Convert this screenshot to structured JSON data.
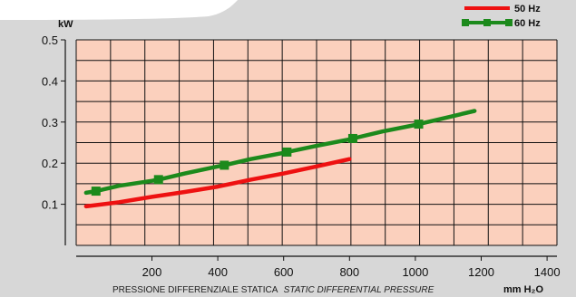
{
  "chart_data": {
    "type": "line",
    "ylabel_unit": "kW",
    "xlabel_it": "PRESSIONE DIFFERENZIALE STATICA",
    "xlabel_en": "STATIC DIFFERENTIAL PRESSURE",
    "xlabel_unit": "mm H₂O",
    "xlim": [
      -30,
      1430
    ],
    "ylim": [
      0,
      0.5
    ],
    "x_ticks": [
      200,
      400,
      600,
      800,
      1000,
      1200,
      1400
    ],
    "y_ticks": [
      0.1,
      0.2,
      0.3,
      0.4,
      0.5
    ],
    "grid": true,
    "legend_position": "top-right",
    "series": [
      {
        "name": "50 Hz",
        "color": "#ee1111",
        "marker": false,
        "x": [
          0,
          100,
          200,
          300,
          400,
          500,
          600,
          700,
          800
        ],
        "y": [
          0.095,
          0.105,
          0.118,
          0.13,
          0.143,
          0.16,
          0.175,
          0.192,
          0.21
        ]
      },
      {
        "name": "60 Hz",
        "color": "#1c8a1c",
        "marker": true,
        "x": [
          0,
          30,
          100,
          200,
          220,
          300,
          400,
          420,
          500,
          600,
          610,
          700,
          800,
          810,
          900,
          1000,
          1010,
          1100,
          1180
        ],
        "y": [
          0.128,
          0.132,
          0.145,
          0.157,
          0.16,
          0.175,
          0.192,
          0.195,
          0.21,
          0.225,
          0.227,
          0.242,
          0.258,
          0.26,
          0.277,
          0.293,
          0.295,
          0.312,
          0.327
        ]
      }
    ],
    "marker_x_60hz": [
      30,
      220,
      420,
      610,
      810,
      1010
    ]
  }
}
